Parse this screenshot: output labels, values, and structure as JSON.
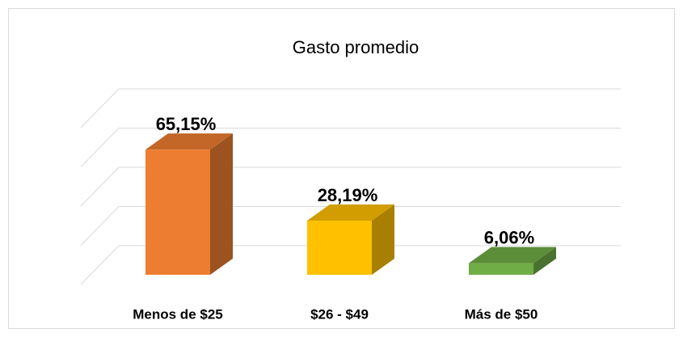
{
  "chart_data": {
    "type": "bar3d",
    "title": "Gasto promedio",
    "categories": [
      "Menos de $25",
      "$26 - $49",
      "Más de $50"
    ],
    "values": [
      65.15,
      28.19,
      6.06
    ],
    "value_labels": [
      "65,15%",
      "28,19%",
      "6,06%"
    ],
    "colors": [
      "#ed7d31",
      "#ffc000",
      "#70ad47"
    ],
    "ylim": [
      0,
      80
    ],
    "yticks": [
      0,
      20,
      40,
      60,
      80
    ],
    "grid": true
  }
}
